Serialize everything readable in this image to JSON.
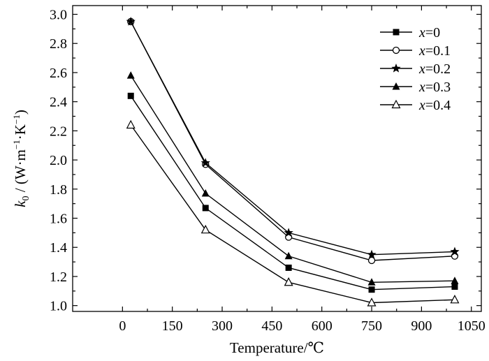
{
  "chart_data": {
    "type": "line",
    "xlabel": "Temperature/℃",
    "ylabel": {
      "main": "k",
      "subscript": "0",
      "rest": " / (W·m",
      "exp1": "−1",
      "mid": "·K",
      "exp2": "−1",
      "close": ")"
    },
    "xlim": [
      -150,
      1080
    ],
    "ylim": [
      0.96,
      3.06
    ],
    "xticks": [
      0,
      150,
      300,
      450,
      600,
      750,
      900,
      1050
    ],
    "yticks": [
      1.0,
      1.2,
      1.4,
      1.6,
      1.8,
      2.0,
      2.2,
      2.4,
      2.6,
      2.8,
      3.0
    ],
    "x": [
      25,
      250,
      500,
      750,
      1000
    ],
    "series": [
      {
        "name": "0",
        "marker": "square-filled",
        "values": [
          2.44,
          1.67,
          1.26,
          1.11,
          1.13
        ]
      },
      {
        "name": "0.1",
        "marker": "circle-open",
        "values": [
          2.95,
          1.97,
          1.47,
          1.31,
          1.34
        ]
      },
      {
        "name": "0.2",
        "marker": "star-filled",
        "values": [
          2.95,
          1.98,
          1.5,
          1.35,
          1.37
        ]
      },
      {
        "name": "0.3",
        "marker": "triangle-filled",
        "values": [
          2.58,
          1.77,
          1.34,
          1.16,
          1.17
        ]
      },
      {
        "name": "0.4",
        "marker": "triangle-open",
        "values": [
          2.24,
          1.52,
          1.16,
          1.02,
          1.04
        ]
      }
    ],
    "legend": {
      "position": "top-right",
      "prefix": "x",
      "separator": "="
    }
  }
}
